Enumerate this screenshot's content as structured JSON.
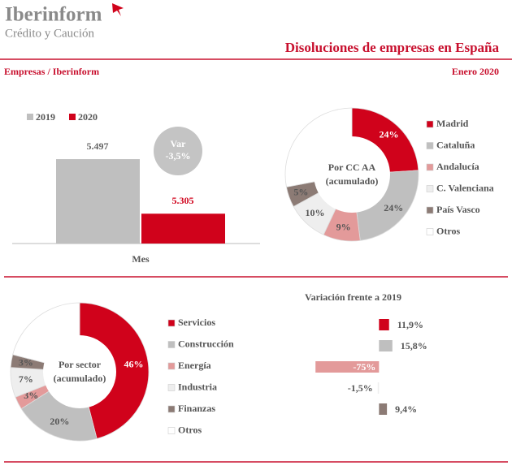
{
  "header": {
    "brand": "Iberinform",
    "brand_sub": "Crédito y Caución",
    "title": "Disoluciones de empresas en España",
    "source": "Empresas / Iberinform",
    "date": "Enero 2020"
  },
  "chart_data": [
    {
      "type": "bar",
      "categories": [
        "Mes"
      ],
      "ylim": [
        5200,
        5600
      ],
      "series": [
        {
          "name": "2019",
          "color": "#bfbfbf",
          "values": [
            5497
          ],
          "value_labels": [
            "5.497"
          ]
        },
        {
          "name": "2020",
          "color": "#d0021b",
          "values": [
            5305
          ],
          "value_labels": [
            "5.305"
          ]
        }
      ],
      "annotations": [
        "Var",
        "-3,5%"
      ]
    },
    {
      "type": "pie",
      "center_label": [
        "Por CC AA",
        "(acumulado)"
      ],
      "categories": [
        "Madrid",
        "Cataluña",
        "Andalucía",
        "C. Valenciana",
        "País Vasco",
        "Otros"
      ],
      "values": [
        24,
        24,
        9,
        10,
        5,
        28
      ],
      "value_labels": [
        "24%",
        "24%",
        "9%",
        "10%",
        "5%",
        null
      ],
      "colors": [
        "#d0021b",
        "#bfbfbf",
        "#e39a9a",
        "#eeeeee",
        "#8c7b75",
        "#ffffff"
      ]
    },
    {
      "type": "pie",
      "center_label": [
        "Por sector",
        "(acumulado)"
      ],
      "categories": [
        "Servicios",
        "Construcción",
        "Energía",
        "Industria",
        "Finanzas",
        "Otros"
      ],
      "values": [
        46,
        20,
        3,
        7,
        3,
        21
      ],
      "value_labels": [
        "46%",
        "20%",
        "3%",
        "7%",
        "3%",
        null
      ],
      "colors": [
        "#d0021b",
        "#bfbfbf",
        "#e39a9a",
        "#eeeeee",
        "#8c7b75",
        "#ffffff"
      ]
    },
    {
      "type": "hbar",
      "title": "Variación frente a 2019",
      "xlim": [
        -80,
        40
      ],
      "values": [
        11.9,
        15.8,
        -75,
        -1.5,
        9.4
      ],
      "value_labels": [
        "11,9%",
        "15,8%",
        "-75%",
        "-1,5%",
        "9,4%"
      ],
      "colors": [
        "#d0021b",
        "#bfbfbf",
        "#e39a9a",
        "#eeeeee",
        "#8c7b75"
      ]
    }
  ]
}
